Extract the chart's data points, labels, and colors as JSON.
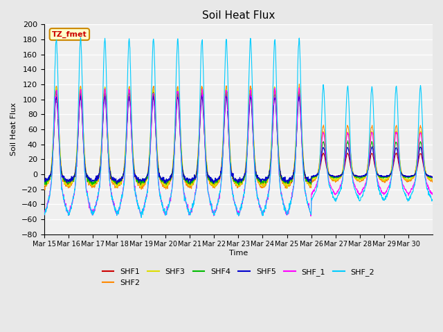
{
  "title": "Soil Heat Flux",
  "xlabel": "Time",
  "ylabel": "Soil Heat Flux",
  "ylim": [
    -80,
    200
  ],
  "yticks": [
    -80,
    -60,
    -40,
    -20,
    0,
    20,
    40,
    60,
    80,
    100,
    120,
    140,
    160,
    180,
    200
  ],
  "x_tick_labels": [
    "Mar 15",
    "Mar 16",
    "Mar 17",
    "Mar 18",
    "Mar 19",
    "Mar 20",
    "Mar 21",
    "Mar 22",
    "Mar 23",
    "Mar 24",
    "Mar 25",
    "Mar 26",
    "Mar 27",
    "Mar 28",
    "Mar 29",
    "Mar 30"
  ],
  "series_colors": {
    "SHF1": "#cc0000",
    "SHF2": "#ff8800",
    "SHF3": "#dddd00",
    "SHF4": "#00bb00",
    "SHF5": "#0000cc",
    "SHF_1": "#ff00ff",
    "SHF_2": "#00ccff"
  },
  "annotation_text": "TZ_fmet",
  "annotation_color": "#cc0000",
  "annotation_bg": "#ffffcc",
  "annotation_border": "#cc8800",
  "background_color": "#e8e8e8",
  "plot_bg": "#f0f0f0",
  "grid_color": "#ffffff",
  "n_days": 16,
  "points_per_day": 96,
  "day_peak": 180,
  "night_trough_shf1": -15,
  "night_trough_shf2": -20,
  "night_trough_shf3": -17,
  "night_trough_shf4": -13,
  "night_trough_shf5": -10,
  "night_trough_shf_1": -62,
  "night_trough_shf_2": -62
}
